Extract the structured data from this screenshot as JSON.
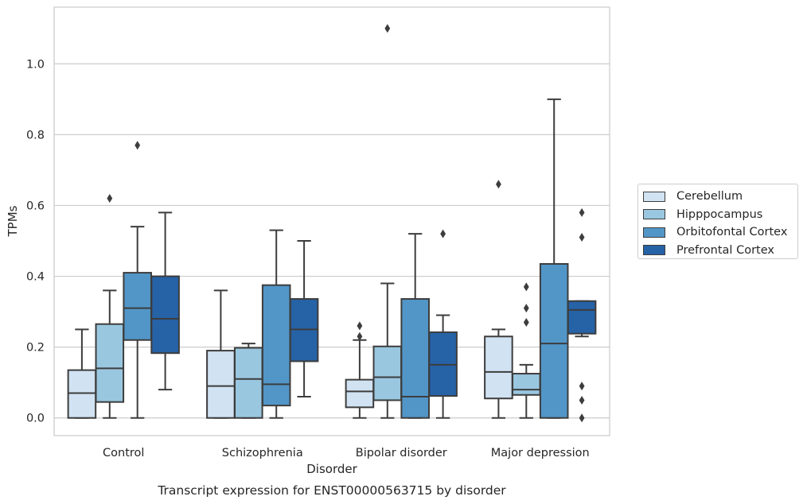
{
  "chart_data": {
    "type": "box",
    "title": "Transcript expression for ENST00000563715 by disorder",
    "xlabel": "Disorder",
    "ylabel": "TPMs",
    "ylim": [
      -0.05,
      1.16
    ],
    "yticks": [
      "0.0",
      "0.2",
      "0.4",
      "0.6",
      "0.8",
      "1.0"
    ],
    "grid": true,
    "legend_position": "right",
    "categories": [
      "Control",
      "Schizophrenia",
      "Bipolar disorder",
      "Major depression"
    ],
    "series": [
      {
        "name": "Cerebellum",
        "color": "#d1e2f2",
        "boxes": [
          {
            "whislo": 0.0,
            "q1": 0.0,
            "med": 0.07,
            "q3": 0.135,
            "whishi": 0.25,
            "fliers": []
          },
          {
            "whislo": 0.0,
            "q1": 0.0,
            "med": 0.09,
            "q3": 0.19,
            "whishi": 0.36,
            "fliers": []
          },
          {
            "whislo": 0.0,
            "q1": 0.03,
            "med": 0.075,
            "q3": 0.108,
            "whishi": 0.22,
            "fliers": [
              0.23,
              0.26
            ]
          },
          {
            "whislo": 0.0,
            "q1": 0.055,
            "med": 0.13,
            "q3": 0.23,
            "whishi": 0.25,
            "fliers": [
              0.66
            ]
          }
        ]
      },
      {
        "name": "Hipppocampus",
        "color": "#9ac7e0",
        "boxes": [
          {
            "whislo": 0.0,
            "q1": 0.045,
            "med": 0.14,
            "q3": 0.265,
            "whishi": 0.36,
            "fliers": [
              0.62
            ]
          },
          {
            "whislo": 0.0,
            "q1": 0.0,
            "med": 0.11,
            "q3": 0.198,
            "whishi": 0.21,
            "fliers": []
          },
          {
            "whislo": 0.0,
            "q1": 0.05,
            "med": 0.115,
            "q3": 0.202,
            "whishi": 0.38,
            "fliers": [
              1.1
            ]
          },
          {
            "whislo": 0.0,
            "q1": 0.065,
            "med": 0.08,
            "q3": 0.125,
            "whishi": 0.15,
            "fliers": [
              0.27,
              0.31,
              0.37
            ]
          }
        ]
      },
      {
        "name": "Orbitofontal Cortex",
        "color": "#5296c8",
        "boxes": [
          {
            "whislo": 0.0,
            "q1": 0.22,
            "med": 0.31,
            "q3": 0.41,
            "whishi": 0.54,
            "fliers": [
              0.77
            ]
          },
          {
            "whislo": 0.0,
            "q1": 0.035,
            "med": 0.095,
            "q3": 0.375,
            "whishi": 0.53,
            "fliers": []
          },
          {
            "whislo": 0.0,
            "q1": 0.0,
            "med": 0.06,
            "q3": 0.336,
            "whishi": 0.52,
            "fliers": []
          },
          {
            "whislo": 0.0,
            "q1": 0.0,
            "med": 0.21,
            "q3": 0.435,
            "whishi": 0.9,
            "fliers": []
          }
        ]
      },
      {
        "name": "Prefrontal Cortex",
        "color": "#2662a6",
        "boxes": [
          {
            "whislo": 0.08,
            "q1": 0.183,
            "med": 0.28,
            "q3": 0.4,
            "whishi": 0.58,
            "fliers": []
          },
          {
            "whislo": 0.06,
            "q1": 0.16,
            "med": 0.25,
            "q3": 0.336,
            "whishi": 0.5,
            "fliers": []
          },
          {
            "whislo": 0.0,
            "q1": 0.062,
            "med": 0.15,
            "q3": 0.242,
            "whishi": 0.29,
            "fliers": [
              0.52
            ]
          },
          {
            "whislo": 0.23,
            "q1": 0.238,
            "med": 0.305,
            "q3": 0.33,
            "whishi": 0.33,
            "fliers": [
              0.0,
              0.05,
              0.09,
              0.51,
              0.58
            ]
          }
        ]
      }
    ]
  }
}
